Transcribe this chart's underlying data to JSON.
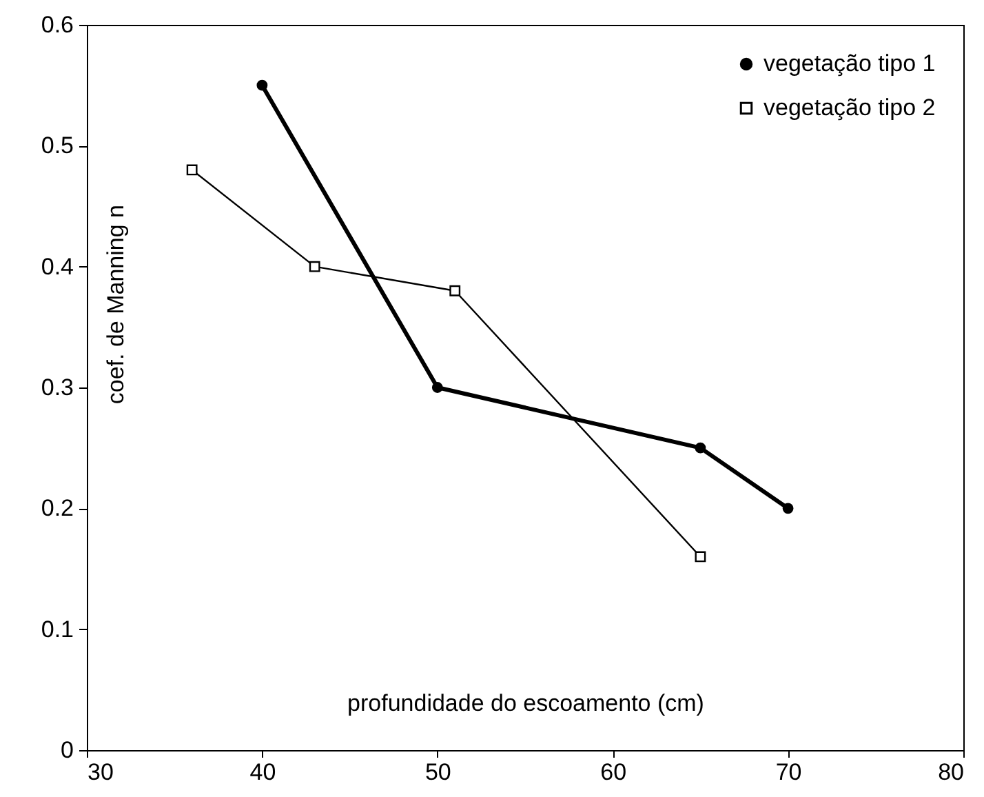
{
  "chart_data": {
    "type": "line",
    "xlabel": "profundidade do escoamento (cm)",
    "ylabel": "coef. de Manning n",
    "xlim": [
      30,
      80
    ],
    "xticks": [
      30,
      40,
      50,
      60,
      70,
      80
    ],
    "ylim": [
      0,
      0.6
    ],
    "yticks": [
      0,
      0.1,
      0.2,
      0.3,
      0.4,
      0.5,
      0.6
    ],
    "grid": false,
    "legend": "top right",
    "line_style": "solid",
    "series": [
      {
        "name": "vegetação tipo 1",
        "color": "#000000",
        "marker": "circle",
        "x": [
          40,
          50,
          65,
          70
        ],
        "values": [
          0.55,
          0.3,
          0.25,
          0.2
        ]
      },
      {
        "name": "vegetação tipo 2",
        "color": "#000000",
        "marker": "square",
        "x": [
          36,
          43,
          51,
          65
        ],
        "values": [
          0.48,
          0.4,
          0.38,
          0.16
        ]
      }
    ]
  }
}
